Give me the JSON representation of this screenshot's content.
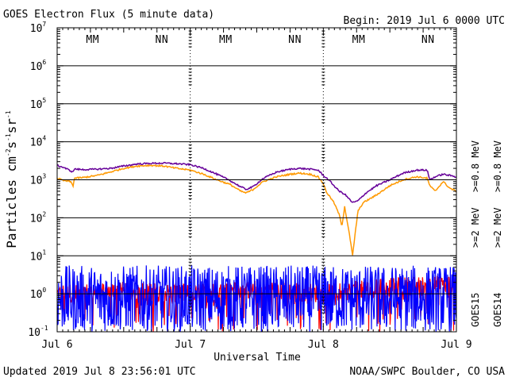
{
  "title": "GOES Electron Flux (5 minute data)",
  "begin_label": "Begin: 2019 Jul 6 0000 UTC",
  "updated_label": "Updated 2019 Jul  8 23:56:01 UTC",
  "credit_label": "NOAA/SWPC Boulder, CO USA",
  "chart_data": {
    "type": "line",
    "title": "GOES Electron Flux (5 minute data)",
    "xlabel": "Universal Time",
    "ylabel_parts": [
      "Particles cm",
      "-2",
      "s",
      "-1",
      "sr",
      "-1"
    ],
    "y_scale": "log",
    "ylim": [
      0.1,
      10000000
    ],
    "y_ticks": [
      {
        "value": 0.1,
        "base": "10",
        "exp": "-1"
      },
      {
        "value": 1,
        "base": "10",
        "exp": "0"
      },
      {
        "value": 10,
        "base": "10",
        "exp": "1"
      },
      {
        "value": 100,
        "base": "10",
        "exp": "2"
      },
      {
        "value": 1000,
        "base": "10",
        "exp": "3"
      },
      {
        "value": 10000,
        "base": "10",
        "exp": "4"
      },
      {
        "value": 100000,
        "base": "10",
        "exp": "5"
      },
      {
        "value": 1000000,
        "base": "10",
        "exp": "6"
      },
      {
        "value": 10000000,
        "base": "10",
        "exp": "7"
      }
    ],
    "xlim_days": [
      0,
      3
    ],
    "x_ticks": [
      {
        "day": 0,
        "label": "Jul 6"
      },
      {
        "day": 1,
        "label": "Jul 7"
      },
      {
        "day": 2,
        "label": "Jul 8"
      },
      {
        "day": 3,
        "label": "Jul 9"
      }
    ],
    "grid": true,
    "threshold": 1000,
    "legend": [
      {
        "text": ">=0.8 MeV",
        "color": "#ff9900",
        "satellite": "GOES14"
      },
      {
        "text": ">=0.8 MeV",
        "color": "#660099",
        "satellite": "GOES15"
      },
      {
        "text": ">=2 MeV",
        "color": "#ff0000",
        "satellite": "GOES14"
      },
      {
        "text": ">=2 MeV",
        "color": "#0000ff",
        "satellite": "GOES15"
      }
    ],
    "satellites": [
      "GOES15",
      "GOES14"
    ],
    "noon_midnight_markers": [
      {
        "day": 0.24,
        "text": "M",
        "color": "#ff0000"
      },
      {
        "day": 0.29,
        "text": "M",
        "color": "#0000ff"
      },
      {
        "day": 0.76,
        "text": "N",
        "color": "#ff0000"
      },
      {
        "day": 0.81,
        "text": "N",
        "color": "#0000ff"
      },
      {
        "day": 1.24,
        "text": "M",
        "color": "#ff0000"
      },
      {
        "day": 1.29,
        "text": "M",
        "color": "#0000ff"
      },
      {
        "day": 1.76,
        "text": "N",
        "color": "#ff0000"
      },
      {
        "day": 1.81,
        "text": "N",
        "color": "#0000ff"
      },
      {
        "day": 2.24,
        "text": "M",
        "color": "#ff0000"
      },
      {
        "day": 2.29,
        "text": "M",
        "color": "#0000ff"
      },
      {
        "day": 2.76,
        "text": "N",
        "color": "#ff0000"
      },
      {
        "day": 2.81,
        "text": "N",
        "color": "#0000ff"
      }
    ],
    "series": [
      {
        "name": "GOES15 >=0.8 MeV",
        "color": "#660099",
        "points": [
          [
            0,
            2400
          ],
          [
            0.05,
            2100
          ],
          [
            0.12,
            1600
          ],
          [
            0.13,
            2000
          ],
          [
            0.14,
            1900
          ],
          [
            0.2,
            1850
          ],
          [
            0.3,
            1900
          ],
          [
            0.4,
            2000
          ],
          [
            0.5,
            2300
          ],
          [
            0.6,
            2600
          ],
          [
            0.7,
            2700
          ],
          [
            0.8,
            2750
          ],
          [
            0.9,
            2650
          ],
          [
            1.0,
            2500
          ],
          [
            1.1,
            2000
          ],
          [
            1.2,
            1400
          ],
          [
            1.3,
            950
          ],
          [
            1.38,
            650
          ],
          [
            1.42,
            560
          ],
          [
            1.47,
            650
          ],
          [
            1.55,
            1100
          ],
          [
            1.65,
            1600
          ],
          [
            1.75,
            1900
          ],
          [
            1.82,
            2000
          ],
          [
            1.9,
            1900
          ],
          [
            1.96,
            1800
          ],
          [
            2.0,
            1300
          ],
          [
            2.04,
            1000
          ],
          [
            2.08,
            700
          ],
          [
            2.12,
            500
          ],
          [
            2.16,
            420
          ],
          [
            2.22,
            250
          ],
          [
            2.26,
            280
          ],
          [
            2.32,
            450
          ],
          [
            2.4,
            700
          ],
          [
            2.5,
            1000
          ],
          [
            2.6,
            1500
          ],
          [
            2.7,
            1800
          ],
          [
            2.78,
            1800
          ],
          [
            2.8,
            1000
          ],
          [
            2.84,
            1200
          ],
          [
            2.9,
            1400
          ],
          [
            2.95,
            1300
          ],
          [
            3.0,
            1200
          ]
        ]
      },
      {
        "name": "GOES14 >=0.8 MeV",
        "color": "#ff9900",
        "points": [
          [
            0,
            1100
          ],
          [
            0.05,
            950
          ],
          [
            0.1,
            900
          ],
          [
            0.12,
            700
          ],
          [
            0.13,
            1100
          ],
          [
            0.2,
            1150
          ],
          [
            0.3,
            1300
          ],
          [
            0.4,
            1600
          ],
          [
            0.5,
            2000
          ],
          [
            0.6,
            2300
          ],
          [
            0.7,
            2400
          ],
          [
            0.8,
            2300
          ],
          [
            0.9,
            2000
          ],
          [
            1.0,
            1800
          ],
          [
            1.1,
            1400
          ],
          [
            1.2,
            1000
          ],
          [
            1.3,
            750
          ],
          [
            1.38,
            500
          ],
          [
            1.42,
            450
          ],
          [
            1.47,
            550
          ],
          [
            1.55,
            900
          ],
          [
            1.65,
            1200
          ],
          [
            1.75,
            1400
          ],
          [
            1.82,
            1500
          ],
          [
            1.9,
            1400
          ],
          [
            1.96,
            1200
          ],
          [
            2.0,
            800
          ],
          [
            2.02,
            500
          ],
          [
            2.08,
            250
          ],
          [
            2.12,
            120
          ],
          [
            2.14,
            60
          ],
          [
            2.16,
            200
          ],
          [
            2.2,
            30
          ],
          [
            2.22,
            10
          ],
          [
            2.24,
            40
          ],
          [
            2.26,
            150
          ],
          [
            2.3,
            250
          ],
          [
            2.4,
            400
          ],
          [
            2.5,
            700
          ],
          [
            2.6,
            1000
          ],
          [
            2.7,
            1200
          ],
          [
            2.78,
            1100
          ],
          [
            2.8,
            700
          ],
          [
            2.84,
            500
          ],
          [
            2.9,
            900
          ],
          [
            2.95,
            600
          ],
          [
            3.0,
            500
          ]
        ]
      },
      {
        "name": "GOES15 >=2 MeV",
        "color": "#0000ff",
        "points": [
          [
            0,
            3
          ],
          [
            0.5,
            4
          ],
          [
            0.7,
            8
          ],
          [
            0.9,
            6
          ],
          [
            1.1,
            4
          ],
          [
            1.4,
            3
          ],
          [
            1.7,
            5
          ],
          [
            1.9,
            6
          ],
          [
            2.1,
            3
          ],
          [
            2.3,
            4
          ],
          [
            2.5,
            6
          ],
          [
            2.7,
            7
          ],
          [
            2.9,
            5
          ],
          [
            3.0,
            6
          ]
        ]
      },
      {
        "name": "GOES14 >=2 MeV",
        "color": "#ff0000",
        "points": [
          [
            0,
            1
          ],
          [
            0.5,
            1.2
          ],
          [
            1.0,
            1
          ],
          [
            1.5,
            1.3
          ],
          [
            2.0,
            1
          ],
          [
            2.5,
            1.5
          ],
          [
            3.0,
            1.8
          ]
        ]
      }
    ]
  }
}
